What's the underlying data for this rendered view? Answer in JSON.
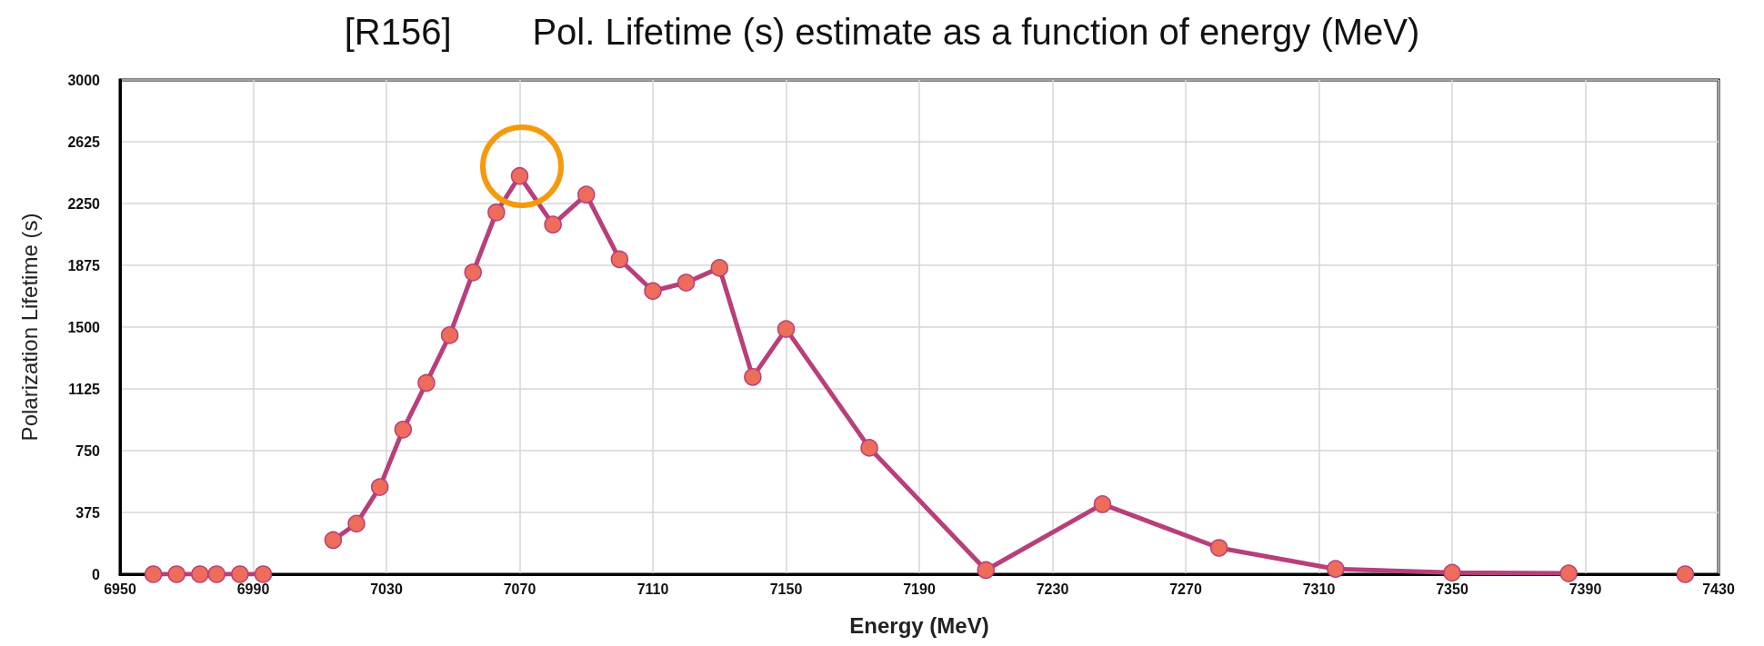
{
  "chart_data": {
    "type": "line",
    "title": "[R156]        Pol. Lifetime (s) estimate as a function of energy (MeV)",
    "xlabel": "Energy (MeV)",
    "ylabel": "Polarization Lifetime (s)",
    "series": [
      {
        "color": "#b83f7a",
        "x": [
          6960,
          6967,
          6974,
          6979,
          6986,
          6993
        ],
        "values": [
          0,
          0,
          0,
          0,
          0,
          0
        ]
      },
      {
        "color": "#b83f7a",
        "x": [
          7014,
          7021,
          7028,
          7035,
          7042,
          7049,
          7056,
          7063,
          7070,
          7080,
          7090,
          7100,
          7110,
          7120,
          7130,
          7140,
          7150,
          7175,
          7210,
          7245,
          7280,
          7315,
          7350,
          7385
        ],
        "values": [
          207,
          307,
          529,
          878,
          1161,
          1451,
          1832,
          2196,
          2417,
          2122,
          2304,
          1911,
          1719,
          1770,
          1859,
          1197,
          1488,
          767,
          25,
          425,
          160,
          32,
          9,
          5
        ]
      },
      {
        "color": "#b83f7a",
        "x": [
          7420
        ],
        "values": [
          0
        ]
      }
    ],
    "xlim": [
      6950,
      7430
    ],
    "xticks": [
      6950,
      6990,
      7030,
      7070,
      7110,
      7150,
      7190,
      7230,
      7270,
      7310,
      7350,
      7390,
      7430
    ],
    "ylim": [
      0,
      3000
    ],
    "yticks": [
      0,
      375,
      750,
      1125,
      1500,
      1875,
      2250,
      2625,
      3000
    ],
    "grid": true,
    "marker": "circle",
    "line_style": "solid"
  }
}
